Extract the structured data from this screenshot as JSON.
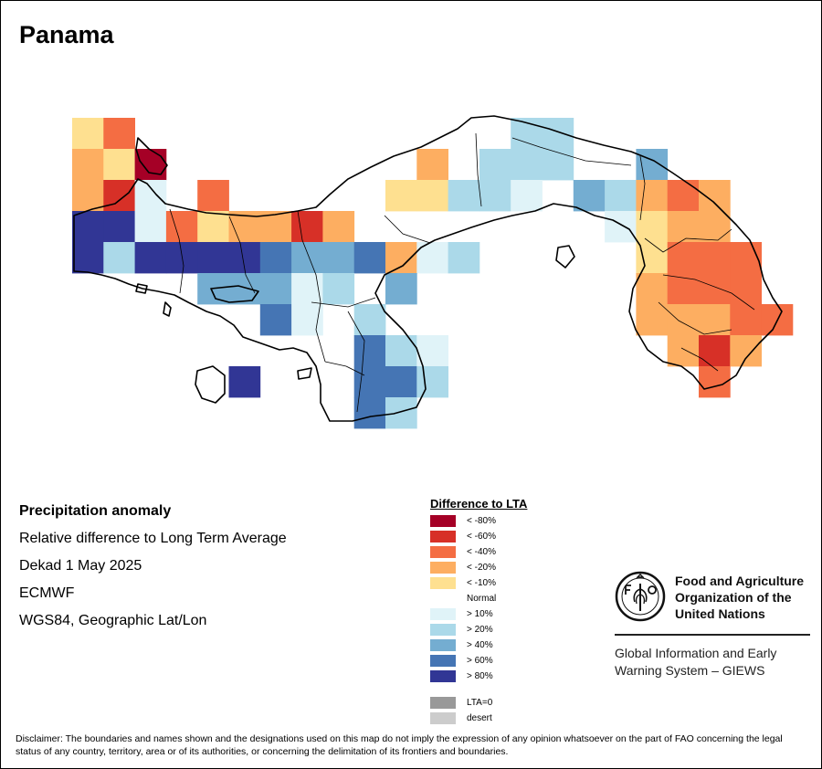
{
  "title": "Panama",
  "info": {
    "line1": "Precipitation anomaly",
    "line2": "Relative difference to Long Term Average",
    "line3": "Dekad 1 May 2025",
    "line4": "ECMWF",
    "line5": "WGS84, Geographic Lat/Lon"
  },
  "legend": {
    "title": "Difference to LTA",
    "items": [
      {
        "label": "< -80%",
        "color": "#a50026"
      },
      {
        "label": "< -60%",
        "color": "#d73027"
      },
      {
        "label": "< -40%",
        "color": "#f46d43"
      },
      {
        "label": "< -20%",
        "color": "#fdae61"
      },
      {
        "label": "< -10%",
        "color": "#fee090"
      },
      {
        "label": "Normal",
        "color": "#ffffff"
      },
      {
        "label": "> 10%",
        "color": "#e0f3f8"
      },
      {
        "label": "> 20%",
        "color": "#abd9e9"
      },
      {
        "label": "> 40%",
        "color": "#74add1"
      },
      {
        "label": "> 60%",
        "color": "#4575b4"
      },
      {
        "label": "> 80%",
        "color": "#313695"
      }
    ],
    "extra": [
      {
        "label": "LTA=0",
        "color": "#999999"
      },
      {
        "label": "desert",
        "color": "#cccccc"
      }
    ]
  },
  "org": {
    "name_line1": "Food and Agriculture",
    "name_line2": "Organization of the",
    "name_line3": "United Nations",
    "giews_line1": "Global Information and Early",
    "giews_line2": "Warning System – GIEWS"
  },
  "disclaimer": "Disclaimer: The boundaries and names shown and the designations used on this map do not imply the expression of any opinion whatsoever on the part of FAO concerning the legal status of any country, territory, area or of its authorities, or concerning the delimitation of its frontiers and boundaries.",
  "grid_cells": [
    {
      "r": 0,
      "c": 0,
      "v": "< -10%"
    },
    {
      "r": 0,
      "c": 1,
      "v": "< -40%"
    },
    {
      "r": 1,
      "c": 0,
      "v": "< -20%"
    },
    {
      "r": 1,
      "c": 1,
      "v": "< -10%"
    },
    {
      "r": 1,
      "c": 2,
      "v": "< -80%"
    },
    {
      "r": 1,
      "c": 11,
      "v": "< -20%"
    },
    {
      "r": 1,
      "c": 13,
      "v": "> 20%"
    },
    {
      "r": 1,
      "c": 14,
      "v": "> 20%"
    },
    {
      "r": 1,
      "c": 15,
      "v": "> 20%"
    },
    {
      "r": 1,
      "c": 18,
      "v": "> 40%"
    },
    {
      "r": 0,
      "c": 14,
      "v": "> 20%"
    },
    {
      "r": 0,
      "c": 15,
      "v": "> 20%"
    },
    {
      "r": 2,
      "c": 0,
      "v": "< -20%"
    },
    {
      "r": 2,
      "c": 1,
      "v": "< -60%"
    },
    {
      "r": 2,
      "c": 2,
      "v": "> 10%"
    },
    {
      "r": 2,
      "c": 4,
      "v": "< -40%"
    },
    {
      "r": 2,
      "c": 10,
      "v": "< -10%"
    },
    {
      "r": 2,
      "c": 11,
      "v": "< -10%"
    },
    {
      "r": 2,
      "c": 12,
      "v": "> 20%"
    },
    {
      "r": 2,
      "c": 13,
      "v": "> 20%"
    },
    {
      "r": 2,
      "c": 14,
      "v": "> 10%"
    },
    {
      "r": 2,
      "c": 16,
      "v": "> 40%"
    },
    {
      "r": 2,
      "c": 17,
      "v": "> 20%"
    },
    {
      "r": 2,
      "c": 18,
      "v": "< -20%"
    },
    {
      "r": 2,
      "c": 19,
      "v": "< -40%"
    },
    {
      "r": 2,
      "c": 20,
      "v": "< -20%"
    },
    {
      "r": 3,
      "c": 0,
      "v": "> 80%"
    },
    {
      "r": 3,
      "c": 1,
      "v": "> 80%"
    },
    {
      "r": 3,
      "c": 2,
      "v": "> 10%"
    },
    {
      "r": 3,
      "c": 3,
      "v": "< -40%"
    },
    {
      "r": 3,
      "c": 4,
      "v": "< -10%"
    },
    {
      "r": 3,
      "c": 5,
      "v": "< -20%"
    },
    {
      "r": 3,
      "c": 6,
      "v": "< -20%"
    },
    {
      "r": 3,
      "c": 7,
      "v": "< -60%"
    },
    {
      "r": 3,
      "c": 8,
      "v": "< -20%"
    },
    {
      "r": 3,
      "c": 17,
      "v": "> 10%"
    },
    {
      "r": 3,
      "c": 18,
      "v": "< -10%"
    },
    {
      "r": 3,
      "c": 19,
      "v": "< -20%"
    },
    {
      "r": 3,
      "c": 20,
      "v": "< -20%"
    },
    {
      "r": 4,
      "c": 0,
      "v": "> 80%"
    },
    {
      "r": 4,
      "c": 1,
      "v": "> 20%"
    },
    {
      "r": 4,
      "c": 2,
      "v": "> 80%"
    },
    {
      "r": 4,
      "c": 3,
      "v": "> 80%"
    },
    {
      "r": 4,
      "c": 4,
      "v": "> 80%"
    },
    {
      "r": 4,
      "c": 5,
      "v": "> 80%"
    },
    {
      "r": 4,
      "c": 6,
      "v": "> 60%"
    },
    {
      "r": 4,
      "c": 7,
      "v": "> 40%"
    },
    {
      "r": 4,
      "c": 8,
      "v": "> 40%"
    },
    {
      "r": 4,
      "c": 9,
      "v": "> 60%"
    },
    {
      "r": 4,
      "c": 10,
      "v": "< -20%"
    },
    {
      "r": 4,
      "c": 11,
      "v": "> 10%"
    },
    {
      "r": 4,
      "c": 12,
      "v": "> 20%"
    },
    {
      "r": 4,
      "c": 18,
      "v": "< -10%"
    },
    {
      "r": 4,
      "c": 19,
      "v": "< -40%"
    },
    {
      "r": 4,
      "c": 20,
      "v": "< -40%"
    },
    {
      "r": 4,
      "c": 21,
      "v": "< -40%"
    },
    {
      "r": 5,
      "c": 4,
      "v": "> 40%"
    },
    {
      "r": 5,
      "c": 5,
      "v": "> 40%"
    },
    {
      "r": 5,
      "c": 6,
      "v": "> 40%"
    },
    {
      "r": 5,
      "c": 7,
      "v": "> 10%"
    },
    {
      "r": 5,
      "c": 8,
      "v": "> 20%"
    },
    {
      "r": 5,
      "c": 10,
      "v": "> 40%"
    },
    {
      "r": 5,
      "c": 18,
      "v": "< -20%"
    },
    {
      "r": 5,
      "c": 19,
      "v": "< -40%"
    },
    {
      "r": 5,
      "c": 20,
      "v": "< -40%"
    },
    {
      "r": 5,
      "c": 21,
      "v": "< -40%"
    },
    {
      "r": 6,
      "c": 6,
      "v": "> 60%"
    },
    {
      "r": 6,
      "c": 7,
      "v": "> 10%"
    },
    {
      "r": 6,
      "c": 9,
      "v": "> 20%"
    },
    {
      "r": 6,
      "c": 18,
      "v": "< -20%"
    },
    {
      "r": 6,
      "c": 19,
      "v": "< -20%"
    },
    {
      "r": 6,
      "c": 20,
      "v": "< -20%"
    },
    {
      "r": 6,
      "c": 21,
      "v": "< -40%"
    },
    {
      "r": 6,
      "c": 22,
      "v": "< -40%"
    },
    {
      "r": 7,
      "c": 9,
      "v": "> 60%"
    },
    {
      "r": 7,
      "c": 10,
      "v": "> 20%"
    },
    {
      "r": 7,
      "c": 11,
      "v": "> 10%"
    },
    {
      "r": 7,
      "c": 19,
      "v": "< -20%"
    },
    {
      "r": 7,
      "c": 20,
      "v": "< -60%"
    },
    {
      "r": 7,
      "c": 21,
      "v": "< -20%"
    },
    {
      "r": 8,
      "c": 5,
      "v": "> 80%"
    },
    {
      "r": 8,
      "c": 9,
      "v": "> 60%"
    },
    {
      "r": 8,
      "c": 10,
      "v": "> 60%"
    },
    {
      "r": 8,
      "c": 11,
      "v": "> 20%"
    },
    {
      "r": 8,
      "c": 20,
      "v": "< -40%"
    },
    {
      "r": 9,
      "c": 9,
      "v": "> 60%"
    },
    {
      "r": 9,
      "c": 10,
      "v": "> 20%"
    }
  ]
}
